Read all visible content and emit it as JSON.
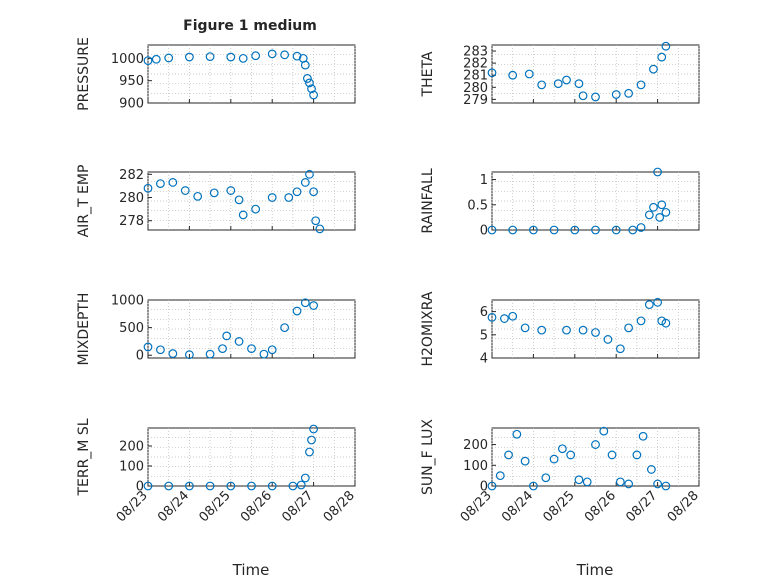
{
  "figure": {
    "title": "Figure 1 medium",
    "x_label": "Time",
    "x_ticks": [
      "08/23",
      "08/24",
      "08/25",
      "08/26",
      "08/27",
      "08/28"
    ]
  },
  "colors": {
    "marker": "#0072BD",
    "axis": "#262626",
    "grid": "#b8b8b8"
  },
  "chart_data": [
    {
      "type": "scatter",
      "ylabel": "PRESSURE",
      "ylim": [
        900,
        1030
      ],
      "yticks": [
        "900",
        "950",
        "1000"
      ],
      "ytick_values": [
        900,
        950,
        1000
      ],
      "xlim": [
        0,
        5
      ],
      "grid": true,
      "points": [
        [
          0,
          995
        ],
        [
          0.2,
          998
        ],
        [
          0.5,
          1001
        ],
        [
          1.0,
          1003
        ],
        [
          1.5,
          1004
        ],
        [
          2.0,
          1003
        ],
        [
          2.3,
          1000
        ],
        [
          2.6,
          1006
        ],
        [
          3.0,
          1010
        ],
        [
          3.3,
          1008
        ],
        [
          3.6,
          1005
        ],
        [
          3.75,
          1000
        ],
        [
          3.8,
          985
        ],
        [
          3.85,
          955
        ],
        [
          3.9,
          945
        ],
        [
          3.95,
          932
        ],
        [
          4.0,
          918
        ]
      ]
    },
    {
      "type": "scatter",
      "ylabel": "THETA",
      "ylim": [
        278.7,
        283.5
      ],
      "yticks": [
        "279",
        "280",
        "281",
        "282",
        "283"
      ],
      "ytick_values": [
        279,
        280,
        281,
        282,
        283
      ],
      "xlim": [
        0,
        5
      ],
      "grid": true,
      "points": [
        [
          0,
          281.2
        ],
        [
          0.5,
          281.0
        ],
        [
          0.9,
          281.1
        ],
        [
          1.2,
          280.2
        ],
        [
          1.6,
          280.3
        ],
        [
          1.8,
          280.6
        ],
        [
          2.1,
          280.3
        ],
        [
          2.2,
          279.3
        ],
        [
          2.5,
          279.2
        ],
        [
          3.0,
          279.4
        ],
        [
          3.3,
          279.5
        ],
        [
          3.6,
          280.2
        ],
        [
          3.9,
          281.5
        ],
        [
          4.1,
          282.5
        ],
        [
          4.2,
          283.4
        ]
      ]
    },
    {
      "type": "scatter",
      "ylabel": "AIR_T EMP",
      "ylim": [
        277.2,
        282.2
      ],
      "yticks": [
        "278",
        "280",
        "282"
      ],
      "ytick_values": [
        278,
        280,
        282
      ],
      "xlim": [
        0,
        5
      ],
      "grid": true,
      "points": [
        [
          0,
          280.8
        ],
        [
          0.3,
          281.2
        ],
        [
          0.6,
          281.3
        ],
        [
          0.9,
          280.6
        ],
        [
          1.2,
          280.1
        ],
        [
          1.6,
          280.4
        ],
        [
          2.0,
          280.6
        ],
        [
          2.2,
          279.8
        ],
        [
          2.3,
          278.5
        ],
        [
          2.6,
          279.0
        ],
        [
          3.0,
          280.0
        ],
        [
          3.4,
          280.0
        ],
        [
          3.6,
          280.5
        ],
        [
          3.8,
          281.3
        ],
        [
          3.9,
          282.0
        ],
        [
          4.0,
          280.5
        ],
        [
          4.05,
          278.0
        ],
        [
          4.15,
          277.3
        ]
      ]
    },
    {
      "type": "scatter",
      "ylabel": "RAINFALL",
      "ylim": [
        0,
        1.15
      ],
      "yticks": [
        "0",
        "0.5",
        "1"
      ],
      "ytick_values": [
        0,
        0.5,
        1
      ],
      "xlim": [
        0,
        5
      ],
      "grid": true,
      "points": [
        [
          0,
          0
        ],
        [
          0.5,
          0
        ],
        [
          1.0,
          0
        ],
        [
          1.5,
          0
        ],
        [
          2.0,
          0
        ],
        [
          2.5,
          0
        ],
        [
          3.0,
          0
        ],
        [
          3.4,
          0
        ],
        [
          3.6,
          0.05
        ],
        [
          3.8,
          0.3
        ],
        [
          3.9,
          0.45
        ],
        [
          4.0,
          1.15
        ],
        [
          4.05,
          0.25
        ],
        [
          4.1,
          0.5
        ],
        [
          4.2,
          0.35
        ]
      ]
    },
    {
      "type": "scatter",
      "ylabel": "MIXDEPTH",
      "ylim": [
        -50,
        1000
      ],
      "yticks": [
        "0",
        "500",
        "1000"
      ],
      "ytick_values": [
        0,
        500,
        1000
      ],
      "xlim": [
        0,
        5
      ],
      "grid": true,
      "points": [
        [
          0,
          150
        ],
        [
          0.3,
          100
        ],
        [
          0.6,
          30
        ],
        [
          1.0,
          10
        ],
        [
          1.5,
          20
        ],
        [
          1.8,
          120
        ],
        [
          1.9,
          350
        ],
        [
          2.2,
          250
        ],
        [
          2.5,
          120
        ],
        [
          2.8,
          20
        ],
        [
          3.0,
          100
        ],
        [
          3.3,
          500
        ],
        [
          3.6,
          800
        ],
        [
          3.8,
          950
        ],
        [
          4.0,
          900
        ]
      ]
    },
    {
      "type": "scatter",
      "ylabel": "H2OMIXRA",
      "ylim": [
        4,
        6.5
      ],
      "yticks": [
        "4",
        "5",
        "6"
      ],
      "ytick_values": [
        4,
        5,
        6
      ],
      "xlim": [
        0,
        5
      ],
      "grid": true,
      "points": [
        [
          0,
          5.75
        ],
        [
          0.3,
          5.7
        ],
        [
          0.5,
          5.8
        ],
        [
          0.8,
          5.3
        ],
        [
          1.2,
          5.2
        ],
        [
          1.8,
          5.2
        ],
        [
          2.2,
          5.2
        ],
        [
          2.5,
          5.1
        ],
        [
          2.8,
          4.8
        ],
        [
          3.1,
          4.4
        ],
        [
          3.3,
          5.3
        ],
        [
          3.6,
          5.6
        ],
        [
          3.8,
          6.3
        ],
        [
          4.0,
          6.4
        ],
        [
          4.1,
          5.6
        ],
        [
          4.2,
          5.5
        ]
      ]
    },
    {
      "type": "scatter",
      "ylabel": "TERR_M SL",
      "ylim": [
        0,
        290
      ],
      "yticks": [
        "0",
        "100",
        "200"
      ],
      "ytick_values": [
        0,
        100,
        200
      ],
      "xlim": [
        0,
        5
      ],
      "grid": true,
      "points": [
        [
          0,
          0
        ],
        [
          0.5,
          0
        ],
        [
          1.0,
          0
        ],
        [
          1.5,
          0
        ],
        [
          2.0,
          0
        ],
        [
          2.5,
          0
        ],
        [
          3.0,
          0
        ],
        [
          3.5,
          0
        ],
        [
          3.7,
          5
        ],
        [
          3.8,
          40
        ],
        [
          3.9,
          170
        ],
        [
          3.95,
          230
        ],
        [
          4.0,
          285
        ]
      ]
    },
    {
      "type": "scatter",
      "ylabel": "SUN_F LUX",
      "ylim": [
        0,
        280
      ],
      "yticks": [
        "0",
        "100",
        "200"
      ],
      "ytick_values": [
        0,
        100,
        200
      ],
      "xlim": [
        0,
        5
      ],
      "grid": true,
      "points": [
        [
          0,
          0
        ],
        [
          0.2,
          50
        ],
        [
          0.4,
          150
        ],
        [
          0.6,
          250
        ],
        [
          0.8,
          120
        ],
        [
          1.0,
          0
        ],
        [
          1.3,
          40
        ],
        [
          1.5,
          130
        ],
        [
          1.7,
          180
        ],
        [
          1.9,
          150
        ],
        [
          2.1,
          30
        ],
        [
          2.3,
          20
        ],
        [
          2.5,
          200
        ],
        [
          2.7,
          265
        ],
        [
          2.9,
          150
        ],
        [
          3.1,
          20
        ],
        [
          3.3,
          10
        ],
        [
          3.5,
          150
        ],
        [
          3.65,
          240
        ],
        [
          3.85,
          80
        ],
        [
          4.0,
          10
        ],
        [
          4.2,
          0
        ]
      ]
    }
  ]
}
